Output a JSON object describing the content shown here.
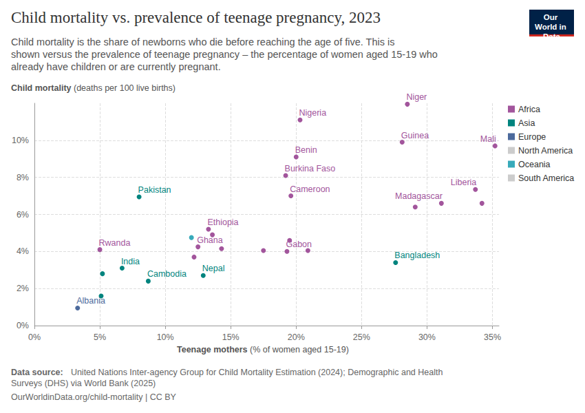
{
  "chart_data": {
    "type": "scatter",
    "title": "Child mortality vs. prevalence of teenage pregnancy, 2023",
    "subtitle": "Child mortality is the share of newborns who die before reaching the age of five. This is shown versus the prevalence of teenage pregnancy – the percentage of women aged 15-19 who already have children or are currently pregnant.",
    "y_label": "Child mortality (deaths per 100 live births)",
    "x_label": "Teenage mothers (% of women aged 15-19)",
    "source": "Data source: United Nations Inter-agency Group for Child Mortality Estimation (2024); Demographic and Health Surveys (DHS) via World Bank (2025)",
    "url": "OurWorldinData.org/child-mortality | CC BY",
    "logo": "Our World in Data",
    "xlim": [
      0,
      35.5
    ],
    "xticks": [
      {
        "value": 0,
        "label": "0%"
      },
      {
        "value": 5,
        "label": "5%"
      },
      {
        "value": 10,
        "label": "10%"
      },
      {
        "value": 15,
        "label": "15%"
      },
      {
        "value": 20,
        "label": "20%"
      },
      {
        "value": 25,
        "label": "25%"
      },
      {
        "value": 30,
        "label": "30%"
      },
      {
        "value": 35,
        "label": "35%"
      }
    ],
    "ylim": [
      0,
      12
    ],
    "yticks": [
      {
        "value": 0,
        "label": "0%"
      },
      {
        "value": 2,
        "label": "2%"
      },
      {
        "value": 4,
        "label": "4%"
      },
      {
        "value": 6,
        "label": "6%"
      },
      {
        "value": 8,
        "label": "8%"
      },
      {
        "value": 10,
        "label": "10%"
      }
    ],
    "grid": true,
    "legend": "right",
    "series": [
      {
        "name": "Africa",
        "color": "#a2559c",
        "x": [
          28.5,
          20.3,
          28.1,
          35.2,
          20.0,
          19.2,
          19.6,
          33.7,
          31.1,
          34.2,
          29.1,
          13.3,
          13.6,
          12.5,
          14.3,
          12.2,
          5.0,
          17.5,
          19.5,
          19.3,
          20.9
        ],
        "values": [
          11.95,
          11.1,
          9.9,
          9.7,
          9.1,
          8.1,
          7.0,
          7.35,
          6.6,
          6.6,
          6.4,
          5.2,
          4.9,
          4.25,
          4.15,
          3.7,
          4.1,
          4.05,
          4.6,
          4.0,
          4.05
        ],
        "labels": [
          "Niger",
          "Nigeria",
          "Guinea",
          "Mali",
          "Benin",
          "Burkina Faso",
          "Cameroon",
          "Liberia",
          "Madagascar",
          null,
          null,
          "Ethiopia",
          null,
          "Ghana",
          null,
          null,
          "Rwanda",
          null,
          null,
          "Gabon",
          null
        ]
      },
      {
        "name": "Asia",
        "color": "#00847e",
        "x": [
          8.0,
          27.6,
          6.7,
          5.2,
          8.7,
          12.9,
          5.1
        ],
        "values": [
          6.95,
          3.4,
          3.1,
          2.8,
          2.4,
          2.7,
          1.6
        ],
        "labels": [
          "Pakistan",
          "Bangladesh",
          "India",
          null,
          "Cambodia",
          "Nepal",
          null
        ]
      },
      {
        "name": "Europe",
        "color": "#4c6a9c",
        "x": [
          3.3
        ],
        "values": [
          0.95
        ],
        "labels": [
          "Albania"
        ]
      },
      {
        "name": "North America",
        "color": "#cccccc",
        "x": [],
        "values": [],
        "labels": []
      },
      {
        "name": "Oceania",
        "color": "#38aaba",
        "x": [
          12.0
        ],
        "values": [
          4.75
        ],
        "labels": [
          null
        ]
      },
      {
        "name": "South America",
        "color": "#cccccc",
        "x": [],
        "values": [],
        "labels": []
      }
    ]
  }
}
